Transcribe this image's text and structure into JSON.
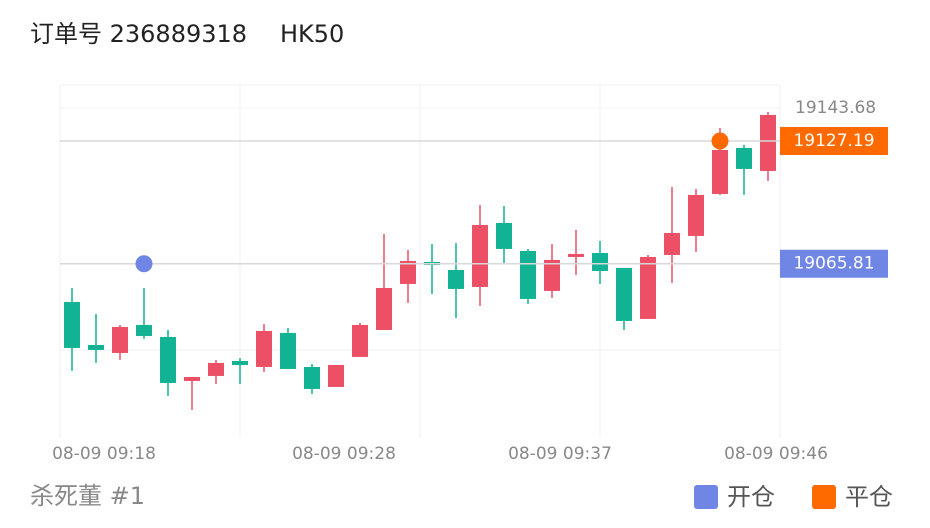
{
  "chart_data": {
    "type": "candlestick",
    "title": "订单号 236889318",
    "subtitle": "HK50",
    "footer": "杀死董 #1",
    "categories": [
      null,
      "08-09 09:18",
      null,
      null,
      null,
      null,
      null,
      null,
      null,
      null,
      null,
      "08-09 09:28",
      null,
      null,
      null,
      null,
      null,
      null,
      null,
      null,
      "08-09 09:37",
      null,
      null,
      null,
      null,
      null,
      null,
      null,
      null,
      "08-09 09:46"
    ],
    "open": [
      19046.7,
      19025.2,
      19021.2,
      19035.2,
      19029.2,
      19007.2,
      19009.7,
      19017.2,
      19014.2,
      19031.2,
      19014.2,
      19004.2,
      19019.2,
      19032.7,
      19055.7,
      19066.7,
      19062.7,
      19054.2,
      19086.2,
      19072.2,
      19052.2,
      19069.2,
      19071.2,
      19063.7,
      19038.2,
      19070.2,
      19079.7,
      19100.7,
      19123.7,
      19112.2
    ],
    "high": [
      19053.7,
      19040.7,
      19035.2,
      19053.7,
      19032.7,
      19009.2,
      19017.7,
      19018.7,
      19035.7,
      19033.7,
      19015.7,
      19015.2,
      19036.2,
      19080.7,
      19072.7,
      19075.7,
      19076.2,
      19095.2,
      19094.7,
      19073.2,
      19075.7,
      19082.7,
      19077.2,
      19063.7,
      19070.2,
      19104.2,
      19103.2,
      19133.7,
      19125.2,
      19141.7
    ],
    "low": [
      19012.2,
      19016.2,
      19017.7,
      19028.2,
      18999.7,
      18992.7,
      19005.7,
      19005.7,
      19011.7,
      19013.2,
      19000.7,
      19004.2,
      19019.2,
      19032.7,
      19046.2,
      19050.7,
      19038.7,
      19044.7,
      19065.7,
      19045.7,
      19048.7,
      19060.2,
      19055.7,
      19032.7,
      19038.2,
      19056.2,
      19071.7,
      19100.2,
      19100.2,
      19107.2
    ],
    "close": [
      19023.7,
      19022.7,
      19034.2,
      19029.7,
      19006.2,
      19009.2,
      19016.2,
      19015.2,
      19032.2,
      19013.2,
      19003.2,
      19015.2,
      19035.2,
      19053.7,
      19067.2,
      19065.2,
      19053.2,
      19085.2,
      19073.2,
      19048.2,
      19067.7,
      19070.7,
      19062.2,
      19037.2,
      19069.2,
      19081.2,
      19100.2,
      19122.7,
      19113.2,
      19140.2
    ],
    "up_color": "#ec5066",
    "down_color": "#12b394",
    "ylim": [
      18978.68,
      19155.18
    ],
    "yticks": [
      19143.68
    ],
    "grid": true,
    "markers": [
      {
        "name": "开仓",
        "value": 19065.81,
        "index": 3,
        "color": "#6f86e4"
      },
      {
        "name": "平仓",
        "value": 19127.19,
        "index": 27,
        "color": "#ff6a00"
      }
    ]
  }
}
